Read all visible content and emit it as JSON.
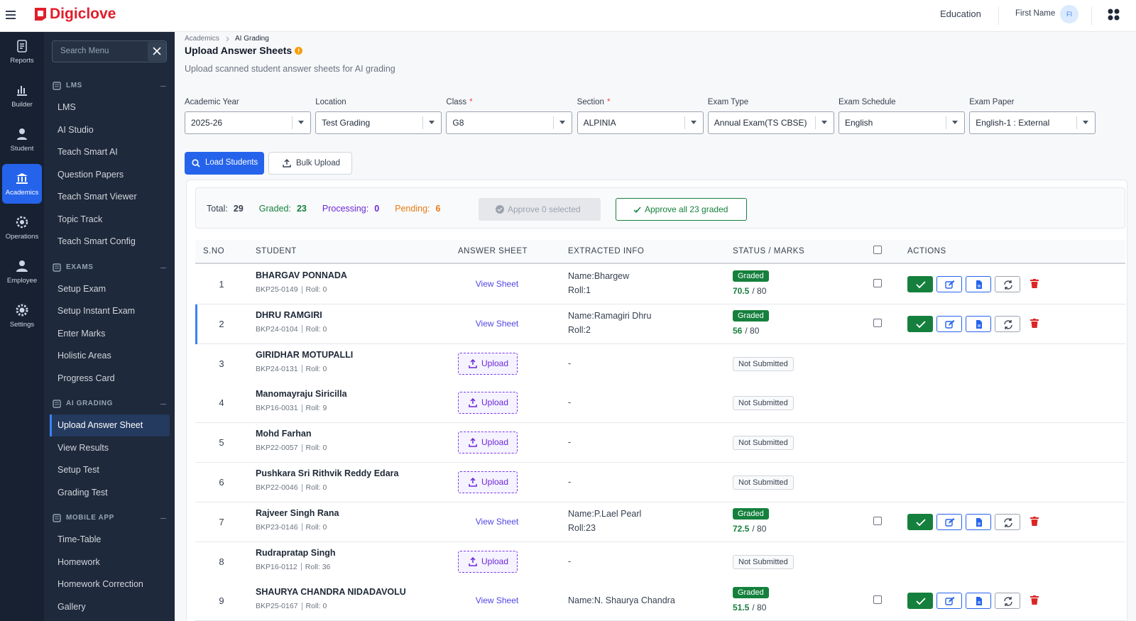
{
  "header": {
    "brand": "Digiclove",
    "context": "Education",
    "user": "First Name",
    "avatar": "FI"
  },
  "rail": {
    "items": [
      "Reports",
      "Builder",
      "Student",
      "Academics",
      "Operations",
      "Employee",
      "Settings"
    ],
    "active": 3
  },
  "sidebar": {
    "search_placeholder": "Search Menu",
    "sections": [
      {
        "title": "LMS",
        "items": [
          "LMS",
          "AI Studio",
          "Teach Smart AI",
          "Question Papers",
          "Teach Smart Viewer",
          "Topic Track",
          "Teach Smart Config"
        ]
      },
      {
        "title": "EXAMS",
        "items": [
          "Setup Exam",
          "Setup Instant Exam",
          "Enter Marks",
          "Holistic Areas",
          "Progress Card"
        ]
      },
      {
        "title": "AI GRADING",
        "items": [
          "Upload Answer Sheet",
          "View Results",
          "Setup Test",
          "Grading Test"
        ],
        "active": 0
      },
      {
        "title": "MOBILE APP",
        "items": [
          "Time-Table",
          "Homework",
          "Homework Correction",
          "Gallery"
        ]
      }
    ]
  },
  "breadcrumb": [
    "Academics",
    "AI Grading"
  ],
  "page": {
    "title": "Upload Answer Sheets",
    "subtitle": "Upload scanned student answer sheets for AI grading"
  },
  "filters": [
    {
      "label": "Academic Year",
      "value": "2025-26"
    },
    {
      "label": "Location",
      "value": "Test Grading"
    },
    {
      "label": "Class",
      "required": "*",
      "value": "G8"
    },
    {
      "label": "Section",
      "required": "*",
      "value": "ALPINIA"
    },
    {
      "label": "Exam Type",
      "value": "Annual Exam(TS CBSE)"
    },
    {
      "label": "Exam Schedule",
      "value": "English"
    },
    {
      "label": "Exam Paper",
      "value": "English-1 : External"
    }
  ],
  "actions": {
    "load": "Load Students",
    "bulk": "Bulk Upload"
  },
  "summary": {
    "stats": [
      {
        "label": "Total:",
        "value": 29,
        "color": "#374151"
      },
      {
        "label": "Graded:",
        "value": 23,
        "color": "#15803d"
      },
      {
        "label": "Processing:",
        "value": 0,
        "color": "#6d28d9"
      },
      {
        "label": "Pending:",
        "value": 6,
        "color": "#ea7a12"
      }
    ],
    "approve_selected": "Approve 0 selected",
    "approve_all": "Approve all 23 graded"
  },
  "table": {
    "columns": [
      "S.NO",
      "STUDENT",
      "ANSWER SHEET",
      "EXTRACTED INFO",
      "STATUS / MARKS",
      "ACTIONS"
    ],
    "rows": [
      {
        "sno": 1,
        "name": "BHARGAV PONNADA",
        "id": "BKP25-0149",
        "roll": "Roll: 0",
        "sheet": {
          "label": "View Sheet",
          "kind": "link"
        },
        "info": [
          "Name:Bhargew",
          "Roll:1"
        ],
        "status": "Graded",
        "marks": 70.5,
        "max": "/ 80"
      },
      {
        "sno": 2,
        "name": "DHRU RAMGIRI",
        "id": "BKP24-0104",
        "roll": "Roll: 0",
        "sheet": {
          "label": "View Sheet",
          "kind": "link"
        },
        "info": [
          "Name:Ramagiri Dhru",
          "Roll:2"
        ],
        "status": "Graded",
        "marks": 56,
        "max": "/ 80",
        "highlighted": true
      },
      {
        "sno": 3,
        "name": "GIRIDHAR MOTUPALLI",
        "id": "BKP24-0131",
        "roll": "Roll: 0",
        "sheet": {
          "label": "Upload",
          "kind": "upload"
        },
        "info": [
          "-"
        ],
        "status": "Not Submitted"
      },
      {
        "sno": 4,
        "name": "Manomayraju Siricilla",
        "id": "BKP16-0031",
        "roll": "Roll: 9",
        "sheet": {
          "label": "Upload",
          "kind": "upload"
        },
        "info": [
          "-"
        ],
        "status": "Not Submitted"
      },
      {
        "sno": 5,
        "name": "Mohd Farhan",
        "id": "BKP22-0057",
        "roll": "Roll: 0",
        "sheet": {
          "label": "Upload",
          "kind": "upload"
        },
        "info": [
          "-"
        ],
        "status": "Not Submitted"
      },
      {
        "sno": 6,
        "name": "Pushkara Sri Rithvik Reddy Edara",
        "id": "BKP22-0046",
        "roll": "Roll: 0",
        "sheet": {
          "label": "Upload",
          "kind": "upload"
        },
        "info": [
          "-"
        ],
        "status": "Not Submitted"
      },
      {
        "sno": 7,
        "name": "Rajveer Singh Rana",
        "id": "BKP23-0146",
        "roll": "Roll: 0",
        "sheet": {
          "label": "View Sheet",
          "kind": "link"
        },
        "info": [
          "Name:P.Lael Pearl",
          "Roll:23"
        ],
        "status": "Graded",
        "marks": 72.5,
        "max": "/ 80"
      },
      {
        "sno": 8,
        "name": "Rudrapratap Singh",
        "id": "BKP16-0112",
        "roll": "Roll: 36",
        "sheet": {
          "label": "Upload",
          "kind": "upload"
        },
        "info": [
          "-"
        ],
        "status": "Not Submitted"
      },
      {
        "sno": 9,
        "name": "SHAURYA CHANDRA NIDADAVOLU",
        "id": "BKP25-0167",
        "roll": "Roll: 0",
        "sheet": {
          "label": "View Sheet",
          "kind": "link"
        },
        "info": [
          "Name:N. Shaurya Chandra"
        ],
        "status": "Graded",
        "marks": 51.5,
        "max": "/ 80"
      }
    ]
  }
}
